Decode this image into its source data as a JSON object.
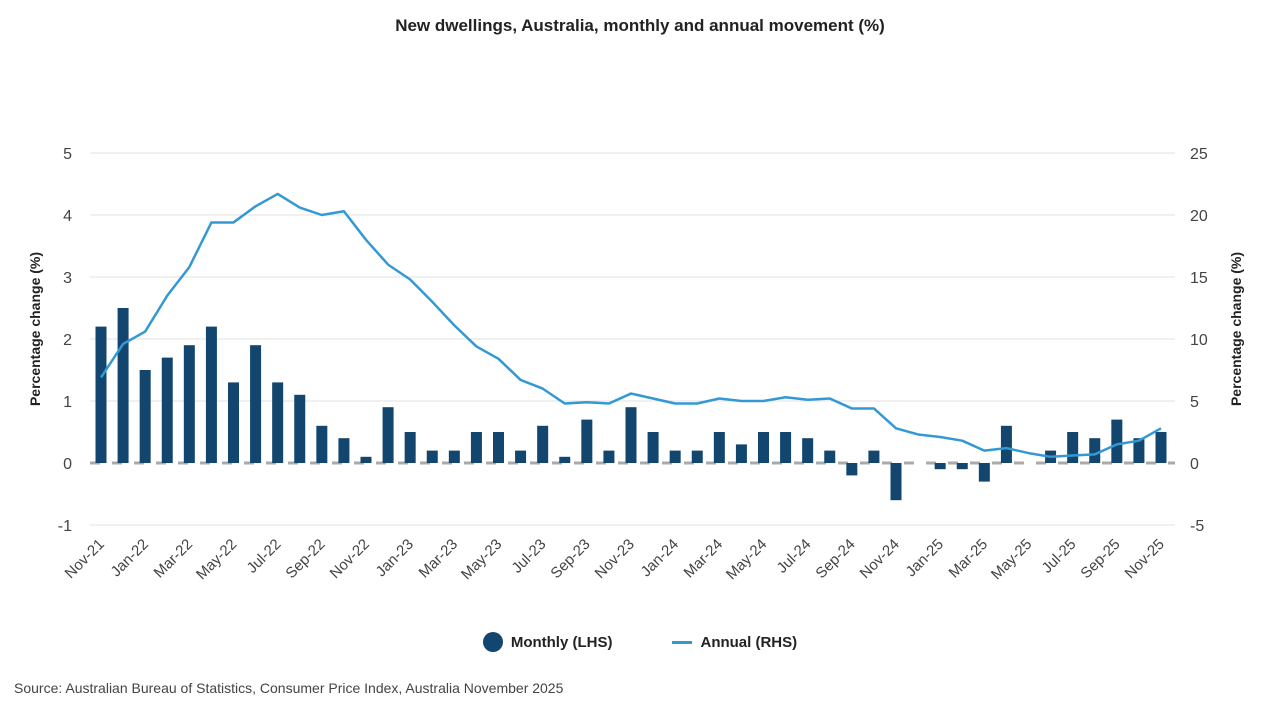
{
  "chart_data": {
    "type": "bar+line",
    "title": "New dwellings, Australia, monthly and annual movement (%)",
    "ylabel": "Percentage change (%)",
    "y2label": "Percentage change (%)",
    "ylim": [
      -1,
      5
    ],
    "y2lim": [
      -5,
      25
    ],
    "yticks": [
      -1,
      0,
      1,
      2,
      3,
      4,
      5
    ],
    "y2ticks": [
      -5,
      0,
      5,
      10,
      15,
      20,
      25
    ],
    "grid": true,
    "legend_position": "bottom",
    "categories": [
      "Nov-21",
      "Dec-21",
      "Jan-22",
      "Feb-22",
      "Mar-22",
      "Apr-22",
      "May-22",
      "Jun-22",
      "Jul-22",
      "Aug-22",
      "Sep-22",
      "Oct-22",
      "Nov-22",
      "Dec-22",
      "Jan-23",
      "Feb-23",
      "Mar-23",
      "Apr-23",
      "May-23",
      "Jun-23",
      "Jul-23",
      "Aug-23",
      "Sep-23",
      "Oct-23",
      "Nov-23",
      "Dec-23",
      "Jan-24",
      "Feb-24",
      "Mar-24",
      "Apr-24",
      "May-24",
      "Jun-24",
      "Jul-24",
      "Aug-24",
      "Sep-24",
      "Oct-24",
      "Nov-24",
      "Dec-24",
      "Jan-25",
      "Feb-25",
      "Mar-25",
      "Apr-25",
      "May-25",
      "Jun-25",
      "Jul-25",
      "Aug-25",
      "Sep-25",
      "Oct-25",
      "Nov-25"
    ],
    "series": [
      {
        "name": "Monthly (LHS)",
        "type": "bar",
        "axis": "left",
        "color": "#12466e",
        "values": [
          2.2,
          2.5,
          1.5,
          1.7,
          1.9,
          2.2,
          1.3,
          1.9,
          1.3,
          1.1,
          0.6,
          0.4,
          0.1,
          0.9,
          0.5,
          0.2,
          0.2,
          0.5,
          0.5,
          0.2,
          0.6,
          0.1,
          0.7,
          0.2,
          0.9,
          0.5,
          0.2,
          0.2,
          0.5,
          0.3,
          0.5,
          0.5,
          0.4,
          0.2,
          -0.2,
          0.2,
          -0.6,
          0.0,
          -0.1,
          -0.1,
          -0.3,
          0.6,
          0.0,
          0.2,
          0.5,
          0.4,
          0.7,
          0.4,
          0.5
        ]
      },
      {
        "name": "Annual (RHS)",
        "type": "line",
        "axis": "right",
        "color": "#3399d4",
        "values": [
          6.9,
          9.6,
          10.6,
          13.5,
          15.8,
          19.4,
          19.4,
          20.7,
          21.7,
          20.6,
          20.0,
          20.3,
          18.0,
          16.0,
          14.8,
          13.0,
          11.1,
          9.4,
          8.4,
          6.7,
          6.0,
          4.8,
          4.9,
          4.8,
          5.6,
          5.2,
          4.8,
          4.8,
          5.2,
          5.0,
          5.0,
          5.3,
          5.1,
          5.2,
          4.4,
          4.4,
          2.8,
          2.3,
          2.1,
          1.8,
          1.0,
          1.2,
          0.8,
          0.5,
          0.6,
          0.7,
          1.5,
          1.8,
          2.8
        ]
      }
    ]
  },
  "source": "Source: Australian Bureau of Statistics, Consumer Price Index, Australia November 2025"
}
